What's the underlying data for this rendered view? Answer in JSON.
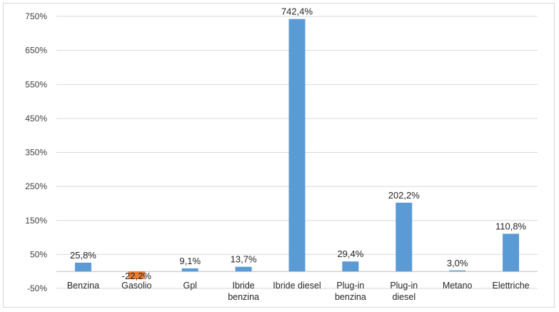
{
  "chart_data": {
    "type": "bar",
    "categories": [
      [
        "Benzina"
      ],
      [
        "Gasolio"
      ],
      [
        "Gpl"
      ],
      [
        "Ibride",
        "benzina"
      ],
      [
        "Ibride diesel"
      ],
      [
        "Plug-in",
        "benzina"
      ],
      [
        "Plug-in",
        "diesel"
      ],
      [
        "Metano"
      ],
      [
        "Elettriche"
      ]
    ],
    "values": [
      25.8,
      -22.2,
      9.1,
      13.7,
      742.4,
      29.4,
      202.2,
      3.0,
      110.8
    ],
    "data_labels": [
      "25,8%",
      "-22,2%",
      "9,1%",
      "13,7%",
      "742,4%",
      "29,4%",
      "202,2%",
      "3,0%",
      "110,8%"
    ],
    "y_ticks": [
      {
        "value": -50,
        "label": "-50%"
      },
      {
        "value": 50,
        "label": "50%"
      },
      {
        "value": 150,
        "label": "150%"
      },
      {
        "value": 250,
        "label": "250%"
      },
      {
        "value": 350,
        "label": "350%"
      },
      {
        "value": 450,
        "label": "450%"
      },
      {
        "value": 550,
        "label": "550%"
      },
      {
        "value": 650,
        "label": "650%"
      },
      {
        "value": 750,
        "label": "750%"
      }
    ],
    "ylim": [
      -50,
      750
    ],
    "grid": true,
    "colors": {
      "positive": "#5b9bd5",
      "negative": "#ed7d31",
      "grid": "#d9d9d9",
      "axis": "#bfbfbf"
    }
  }
}
